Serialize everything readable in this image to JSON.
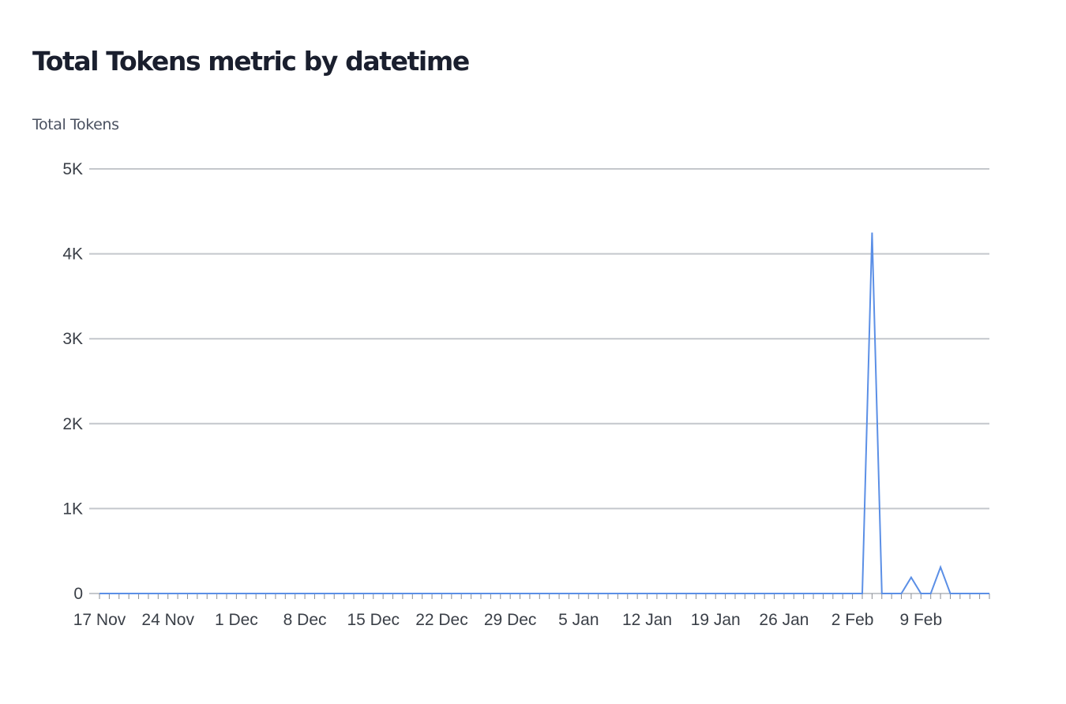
{
  "chart_data": {
    "type": "line",
    "title": "Total Tokens metric by datetime",
    "ylabel": "Total Tokens",
    "xlabel": "",
    "x_range": [
      "2024-11-17",
      "2025-02-16"
    ],
    "ylim": [
      0,
      5000
    ],
    "y_ticks": [
      {
        "value": 0,
        "label": "0"
      },
      {
        "value": 1000,
        "label": "1K"
      },
      {
        "value": 2000,
        "label": "2K"
      },
      {
        "value": 3000,
        "label": "3K"
      },
      {
        "value": 4000,
        "label": "4K"
      },
      {
        "value": 5000,
        "label": "5K"
      }
    ],
    "x_ticks": [
      {
        "date": "2024-11-17",
        "label": "17 Nov"
      },
      {
        "date": "2024-11-24",
        "label": "24 Nov"
      },
      {
        "date": "2024-12-01",
        "label": "1 Dec"
      },
      {
        "date": "2024-12-08",
        "label": "8 Dec"
      },
      {
        "date": "2024-12-15",
        "label": "15 Dec"
      },
      {
        "date": "2024-12-22",
        "label": "22 Dec"
      },
      {
        "date": "2024-12-29",
        "label": "29 Dec"
      },
      {
        "date": "2025-01-05",
        "label": "5 Jan"
      },
      {
        "date": "2025-01-12",
        "label": "12 Jan"
      },
      {
        "date": "2025-01-19",
        "label": "19 Jan"
      },
      {
        "date": "2025-01-26",
        "label": "26 Jan"
      },
      {
        "date": "2025-02-02",
        "label": "2 Feb"
      },
      {
        "date": "2025-02-09",
        "label": "9 Feb"
      }
    ],
    "grid": true,
    "legend": "none",
    "series": [
      {
        "color": "#5b8fe6",
        "points": [
          {
            "date": "2024-11-17",
            "value": 0
          },
          {
            "date": "2025-02-03",
            "value": 0
          },
          {
            "date": "2025-02-04",
            "value": 4250
          },
          {
            "date": "2025-02-05",
            "value": 0
          },
          {
            "date": "2025-02-06",
            "value": 0
          },
          {
            "date": "2025-02-07",
            "value": 0
          },
          {
            "date": "2025-02-08",
            "value": 190
          },
          {
            "date": "2025-02-09",
            "value": 0
          },
          {
            "date": "2025-02-10",
            "value": 0
          },
          {
            "date": "2025-02-11",
            "value": 310
          },
          {
            "date": "2025-02-12",
            "value": 0
          },
          {
            "date": "2025-02-16",
            "value": 0
          }
        ]
      }
    ]
  }
}
